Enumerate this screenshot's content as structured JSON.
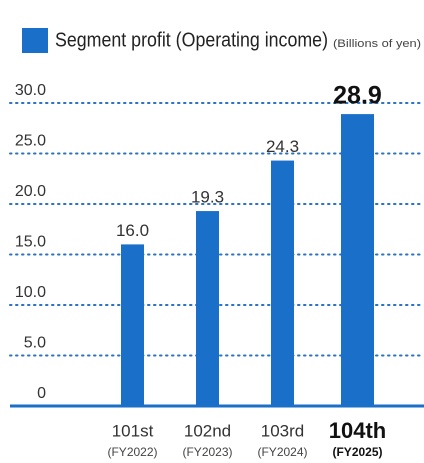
{
  "chart_data": {
    "type": "bar",
    "title": "Segment profit (Operating income)",
    "subtitle": "(Billions of yen)",
    "categories": [
      "101st",
      "102nd",
      "103rd",
      "104th"
    ],
    "fiscal_years": [
      "(FY2022)",
      "(FY2023)",
      "(FY2024)",
      "(FY2025)"
    ],
    "values": [
      16,
      19.3,
      24.3,
      28.9
    ],
    "value_labels": [
      "16.0",
      "19.3",
      "24.3",
      "28.9"
    ],
    "color": "#1a6fc9",
    "highlight_index": 3,
    "ylim": [
      0,
      30
    ],
    "yticks": [
      0,
      {
        "value": 5,
        "label": "5.0"
      },
      {
        "value": 10,
        "label": "10.0"
      },
      {
        "value": 15,
        "label": "15.0"
      },
      {
        "value": 20,
        "label": "20.0"
      },
      {
        "value": 25,
        "label": "25.0"
      },
      {
        "value": 30,
        "label": "30.0"
      }
    ],
    "grid": true
  }
}
